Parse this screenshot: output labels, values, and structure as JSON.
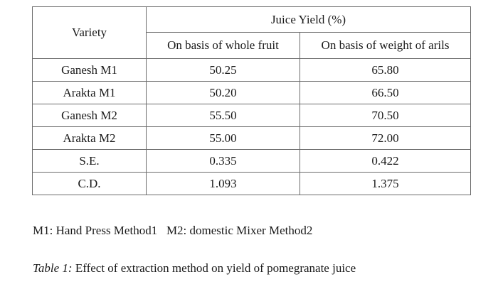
{
  "table": {
    "header": {
      "variety": "Variety",
      "group": "Juice Yield (%)",
      "col_whole": "On basis of whole fruit",
      "col_arils": "On basis of weight of arils"
    },
    "rows": [
      {
        "variety": "Ganesh M1",
        "whole": "50.25",
        "arils": "65.80"
      },
      {
        "variety": "Arakta M1",
        "whole": "50.20",
        "arils": "66.50"
      },
      {
        "variety": "Ganesh M2",
        "whole": "55.50",
        "arils": "70.50"
      },
      {
        "variety": "Arakta M2",
        "whole": "55.00",
        "arils": "72.00"
      },
      {
        "variety": "S.E.",
        "whole": "0.335",
        "arils": "0.422"
      },
      {
        "variety": "C.D.",
        "whole": "1.093",
        "arils": "1.375"
      }
    ]
  },
  "note": "M1: Hand Press Method1   M2: domestic Mixer Method2",
  "caption": {
    "label": "Table 1:",
    "text": " Effect of extraction method on yield of pomegranate juice"
  }
}
